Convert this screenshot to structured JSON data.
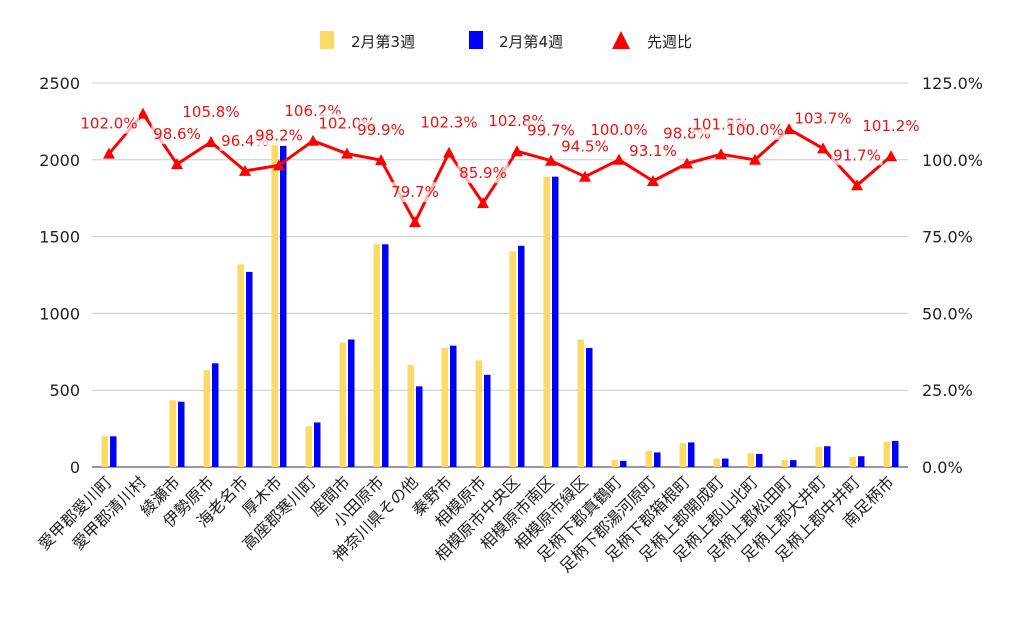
{
  "chart_data": {
    "type": "bar",
    "categories": [
      "愛甲郡愛川町",
      "愛甲郡清川村",
      "綾瀬市",
      "伊勢原市",
      "海老名市",
      "厚木市",
      "高座郡寒川町",
      "座間市",
      "小田原市",
      "神奈川県その他",
      "秦野市",
      "相模原市",
      "相模原市中央区",
      "相模原市南区",
      "相模原市緑区",
      "足柄下郡真鶴町",
      "足柄下郡湯河原町",
      "足柄下郡箱根町",
      "足柄上郡開成町",
      "足柄上郡山北町",
      "足柄上郡松田町",
      "足柄上郡大井町",
      "足柄上郡中井町",
      "南足柄市"
    ],
    "series": [
      {
        "name": "2月第3週",
        "color": "#ffd966",
        "values": [
          200,
          0,
          435,
          630,
          1320,
          2120,
          265,
          810,
          1450,
          665,
          775,
          695,
          1405,
          1890,
          830,
          45,
          105,
          155,
          55,
          90,
          45,
          130,
          65,
          165
        ]
      },
      {
        "name": "2月第4週",
        "color": "#0000ff",
        "values": [
          200,
          0,
          425,
          675,
          1270,
          2090,
          290,
          830,
          1450,
          525,
          790,
          600,
          1440,
          1890,
          775,
          40,
          95,
          160,
          55,
          85,
          45,
          135,
          70,
          170
        ]
      }
    ],
    "line_series": {
      "name": "先週比",
      "color": "#ff0000",
      "values": [
        102.0,
        115.0,
        98.6,
        105.8,
        96.4,
        98.2,
        106.2,
        102.0,
        99.9,
        79.7,
        102.3,
        85.9,
        102.8,
        99.7,
        94.5,
        100.0,
        93.1,
        98.8,
        101.8,
        100.0,
        110.0,
        103.7,
        91.7,
        101.2
      ],
      "labels": [
        "102.0%",
        "",
        "98.6%",
        "105.8%",
        "96.4%",
        "98.2%",
        "106.2%",
        "102.0%",
        "99.9%",
        "79.7%",
        "102.3%",
        "85.9%",
        "102.8%",
        "99.7%",
        "94.5%",
        "100.0%",
        "93.1%",
        "98.8%",
        "101.8%",
        "100.0%",
        "",
        "103.7%",
        "91.7%",
        "101.2%"
      ]
    },
    "y_left": {
      "min": 0,
      "max": 2500,
      "ticks": [
        "0",
        "500",
        "1000",
        "1500",
        "2000",
        "2500"
      ]
    },
    "y_right": {
      "min": 0,
      "max": 125,
      "ticks": [
        "0.0%",
        "25.0%",
        "50.0%",
        "75.0%",
        "100.0%",
        "125.0%"
      ]
    },
    "grid": true,
    "legend": "top-center"
  }
}
